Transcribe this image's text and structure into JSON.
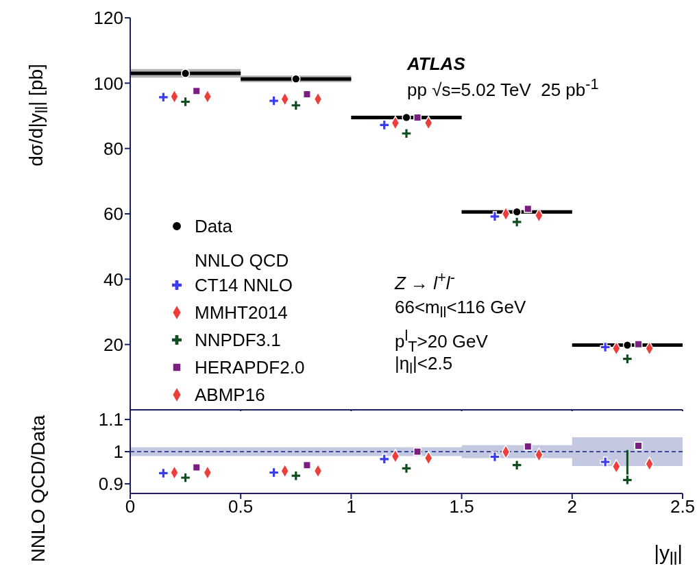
{
  "chart_data": [
    {
      "type": "scatter",
      "ylabel": "dσ/d|y$_{ll}$| [pb]",
      "xlim": [
        0,
        2.5
      ],
      "xticks": [
        0,
        0.5,
        1,
        1.5,
        2,
        2.5
      ],
      "ylim": [
        0,
        120
      ],
      "yticks": [
        20,
        40,
        60,
        80,
        100,
        120
      ],
      "tick_labels": "y",
      "legend": "left",
      "legend_title": "NNLO QCD",
      "annotations": [
        "ATLAS",
        "pp √s=5.02 TeV  25 pb$^{-1}$",
        "Z → l$^{+}$l$^{-}$",
        "66<m$_{ll}$<116 GeV",
        "p$^{l}$$_{T}$>20 GeV",
        "|η$_{l}$|<2.5"
      ],
      "series": [
        {
          "name": "Data",
          "color": "#000000",
          "marker": "circle",
          "x": [
            0.25,
            0.75,
            1.25,
            1.75,
            2.25
          ],
          "values": [
            103.0,
            101.3,
            89.5,
            60.6,
            19.8
          ],
          "xerrors": [
            0.25,
            0.25,
            0.25,
            0.25,
            0.25
          ],
          "errors": [
            1.3,
            1.0,
            0.6,
            0.5,
            0.4
          ]
        },
        {
          "name": "CT14 NNLO",
          "color": "#3b3bf0",
          "marker": "cross",
          "x": [
            0.15,
            0.65,
            1.15,
            1.65,
            2.15
          ],
          "values": [
            95.7,
            94.6,
            87.2,
            59.2,
            19.2
          ]
        },
        {
          "name": "MMHT2014",
          "color": "#f03c3c",
          "marker": "diamond",
          "x": [
            0.2,
            0.7,
            1.2,
            1.7,
            2.2
          ],
          "values": [
            95.9,
            95.1,
            87.8,
            60.0,
            18.8
          ]
        },
        {
          "name": "NNPDF3.1",
          "color": "#0f4d1f",
          "marker": "cross",
          "x": [
            0.25,
            0.75,
            1.25,
            1.75,
            2.25
          ],
          "values": [
            94.3,
            93.2,
            84.6,
            57.5,
            15.6
          ]
        },
        {
          "name": "HERAPDF2.0",
          "color": "#7a1f7f",
          "marker": "square",
          "x": [
            0.3,
            0.8,
            1.3,
            1.8,
            2.3
          ],
          "values": [
            97.6,
            96.6,
            89.5,
            61.5,
            20.1
          ]
        },
        {
          "name": "ABMP16",
          "color": "#e8403a",
          "marker": "diamond",
          "x": [
            0.35,
            0.85,
            1.35,
            1.85,
            2.35
          ],
          "values": [
            95.9,
            95.1,
            87.8,
            59.5,
            18.8
          ]
        }
      ]
    },
    {
      "type": "scatter",
      "ylabel": "NNLO QCD/Data",
      "xlabel": "|y$_{ll}$|",
      "xlim": [
        0,
        2.5
      ],
      "xticks": [
        0,
        0.5,
        1,
        1.5,
        2,
        2.5
      ],
      "ylim": [
        0.87,
        1.13
      ],
      "yticks": [
        0.9,
        1,
        1.1
      ],
      "series": [
        {
          "type": "line",
          "color": "#3a4a9a",
          "line_style": "dashed",
          "x": [
            0,
            1.5,
            1.5,
            2,
            2,
            2.5
          ],
          "values": [
            1,
            1,
            1,
            1,
            1,
            1
          ],
          "lower": [
            0.986,
            0.986,
            0.98,
            0.98,
            0.955,
            0.955
          ],
          "upper": [
            1.014,
            1.014,
            1.02,
            1.02,
            1.045,
            1.045
          ]
        },
        {
          "color": "#3b3bf0",
          "marker": "cross",
          "x": [
            0.15,
            0.65,
            1.15,
            1.65,
            2.15
          ],
          "values": [
            0.933,
            0.935,
            0.977,
            0.984,
            0.968
          ]
        },
        {
          "color": "#f03c3c",
          "marker": "diamond",
          "x": [
            0.2,
            0.7,
            1.2,
            1.7,
            2.2
          ],
          "values": [
            0.935,
            0.94,
            0.986,
            0.999,
            0.954
          ]
        },
        {
          "color": "#0f4d1f",
          "marker": "cross",
          "x": [
            0.25,
            0.75,
            1.25,
            1.75,
            2.25
          ],
          "values": [
            0.919,
            0.925,
            0.948,
            0.958,
            0.912
          ],
          "errors": [
            null,
            null,
            null,
            null,
            [
              0.912,
              1.005
            ]
          ]
        },
        {
          "color": "#7a1f7f",
          "marker": "square",
          "x": [
            0.3,
            0.8,
            1.3,
            1.8,
            2.3
          ],
          "values": [
            0.951,
            0.958,
            1.0,
            1.016,
            1.018
          ]
        },
        {
          "color": "#e8403a",
          "marker": "diamond",
          "x": [
            0.35,
            0.85,
            1.35,
            1.85,
            2.35
          ],
          "values": [
            0.935,
            0.94,
            0.98,
            0.99,
            0.962
          ]
        }
      ]
    }
  ]
}
